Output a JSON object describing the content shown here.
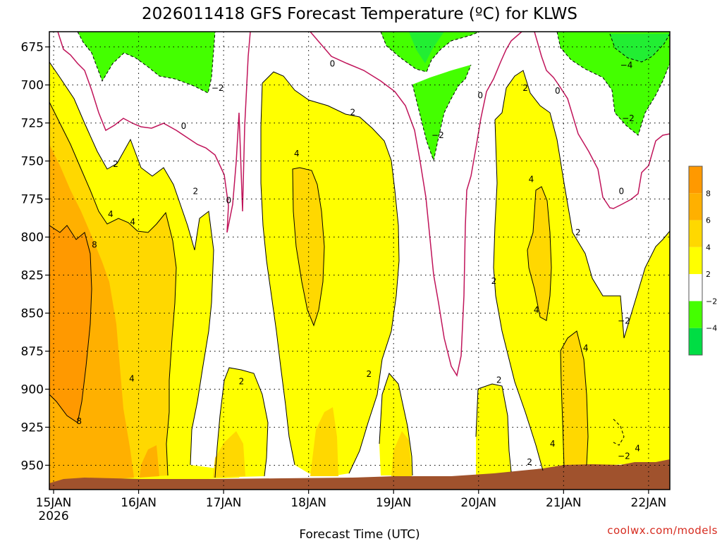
{
  "chart_data": {
    "type": "heatmap",
    "title": "2026011418 GFS Forecast Temperature (ºC) for KLWS",
    "xlabel": "Forecast Time (UTC)",
    "ylabel": "",
    "y_axis": {
      "unit": "hPa",
      "range": [
        665,
        966
      ],
      "ticks": [
        675,
        700,
        725,
        750,
        775,
        800,
        825,
        850,
        875,
        900,
        925,
        950
      ]
    },
    "x_axis": {
      "unit": "days from 15JAN 00Z",
      "range": [
        -0.05,
        7.25
      ],
      "ticks": [
        {
          "label": "15JAN",
          "sub": "2026",
          "x": 0
        },
        {
          "label": "16JAN",
          "x": 1
        },
        {
          "label": "17JAN",
          "x": 2
        },
        {
          "label": "18JAN",
          "x": 3
        },
        {
          "label": "19JAN",
          "x": 4
        },
        {
          "label": "20JAN",
          "x": 5
        },
        {
          "label": "21JAN",
          "x": 6
        },
        {
          "label": "22JAN",
          "x": 7
        }
      ]
    },
    "colorbar": {
      "levels": [
        8,
        6,
        4,
        2,
        -2,
        -4
      ],
      "labels": [
        "8",
        "6",
        "4",
        "2",
        "−2",
        "−4"
      ],
      "colors": [
        "#ff9900",
        "#ffb000",
        "#ffd800",
        "#ffff00",
        "#ffffff",
        "#44ff00",
        "#00dd44"
      ]
    },
    "contour_labels": [
      {
        "text": "0",
        "t": 3.28,
        "p": 686
      },
      {
        "text": "−2",
        "t": 1.93,
        "p": 702
      },
      {
        "text": "2",
        "t": 3.52,
        "p": 718
      },
      {
        "text": "0",
        "t": 1.53,
        "p": 727
      },
      {
        "text": "2",
        "t": 0.73,
        "p": 752
      },
      {
        "text": "2",
        "t": 1.67,
        "p": 770
      },
      {
        "text": "0",
        "t": 2.06,
        "p": 776
      },
      {
        "text": "4",
        "t": 0.67,
        "p": 785
      },
      {
        "text": "4",
        "t": 0.93,
        "p": 790
      },
      {
        "text": "8",
        "t": 0.48,
        "p": 805
      },
      {
        "text": "4",
        "t": 2.86,
        "p": 745
      },
      {
        "text": "−2",
        "t": 4.52,
        "p": 733
      },
      {
        "text": "0",
        "t": 5.02,
        "p": 707
      },
      {
        "text": "2",
        "t": 5.55,
        "p": 702
      },
      {
        "text": "0",
        "t": 5.93,
        "p": 704
      },
      {
        "text": "4",
        "t": 5.62,
        "p": 762
      },
      {
        "text": "0",
        "t": 6.68,
        "p": 770
      },
      {
        "text": "−4",
        "t": 6.74,
        "p": 687
      },
      {
        "text": "−2",
        "t": 6.76,
        "p": 722
      },
      {
        "text": "2",
        "t": 6.17,
        "p": 797
      },
      {
        "text": "2",
        "t": 5.18,
        "p": 829
      },
      {
        "text": "4",
        "t": 5.68,
        "p": 848
      },
      {
        "text": "−2",
        "t": 6.71,
        "p": 855
      },
      {
        "text": "4",
        "t": 6.26,
        "p": 873
      },
      {
        "text": "2",
        "t": 3.71,
        "p": 890
      },
      {
        "text": "2",
        "t": 2.21,
        "p": 895
      },
      {
        "text": "4",
        "t": 0.92,
        "p": 893
      },
      {
        "text": "2",
        "t": 5.24,
        "p": 894
      },
      {
        "text": "8",
        "t": 0.3,
        "p": 921
      },
      {
        "text": "4",
        "t": 5.87,
        "p": 936
      },
      {
        "text": "−2",
        "t": 6.71,
        "p": 944
      },
      {
        "text": "4",
        "t": 6.87,
        "p": 939
      },
      {
        "text": "2",
        "t": 5.6,
        "p": 948
      }
    ]
  },
  "credit": "coolwx.com/models"
}
